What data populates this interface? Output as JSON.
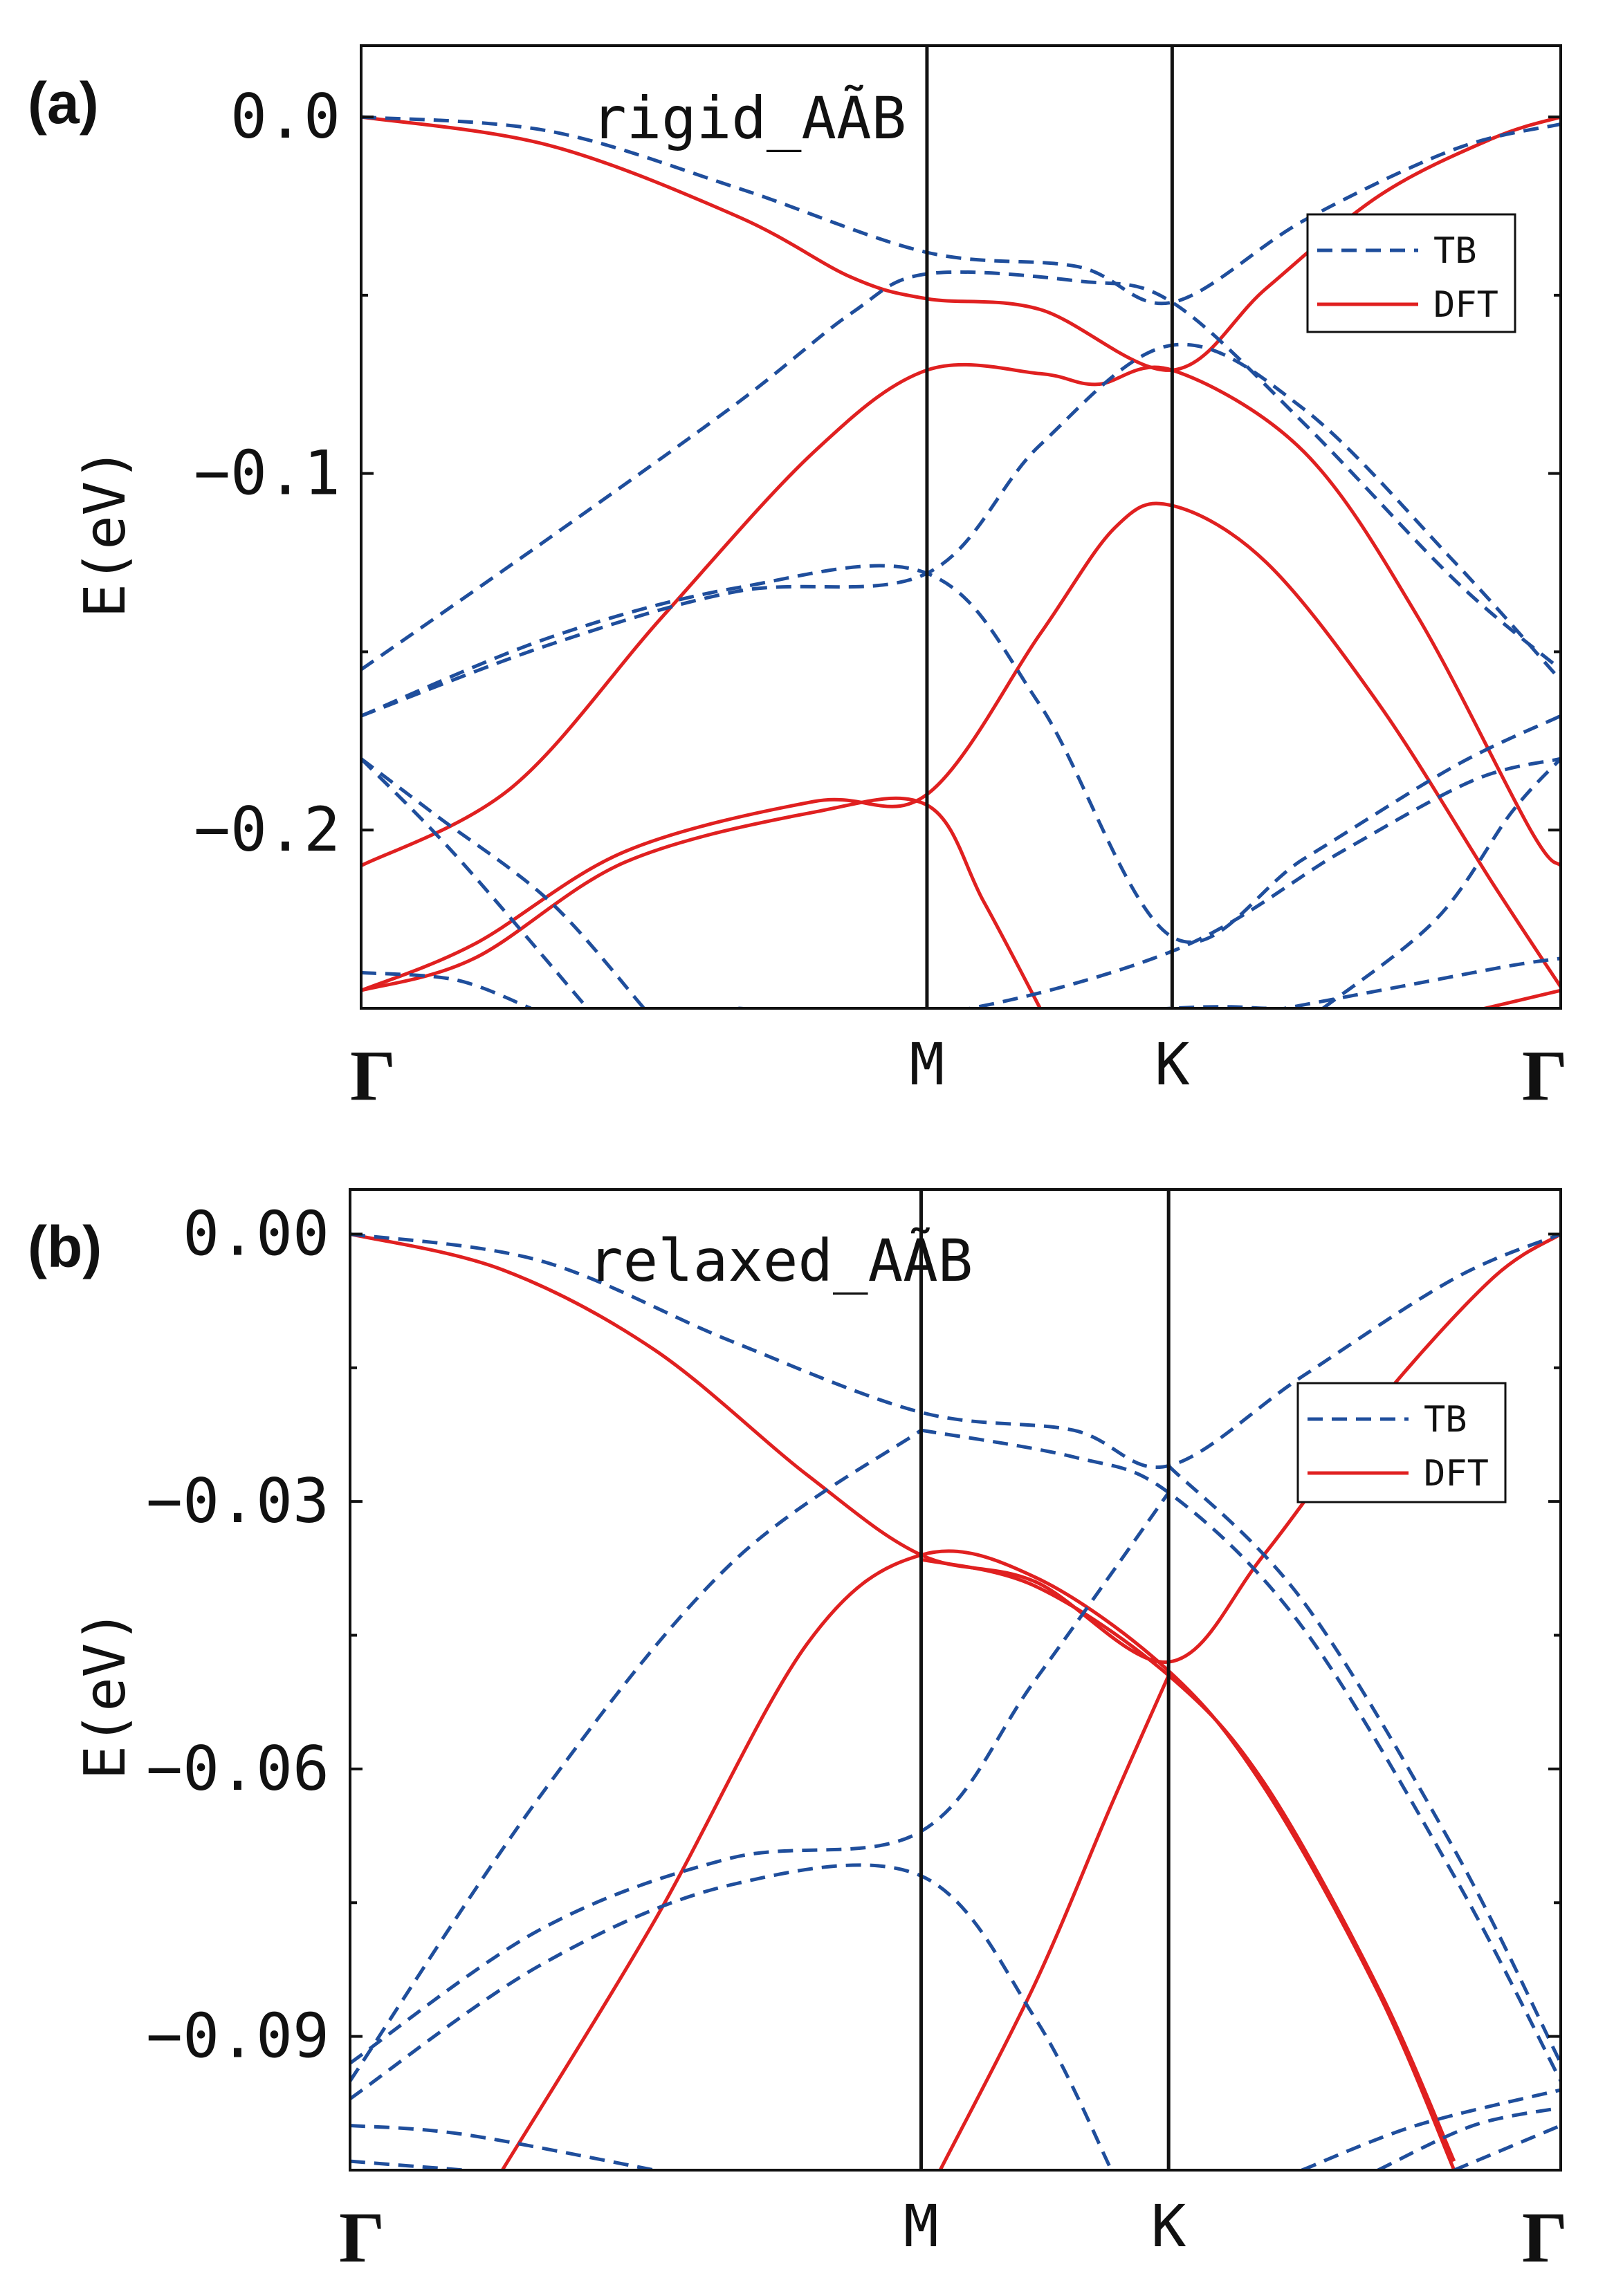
{
  "chart_data": [
    {
      "type": "line",
      "panel_label": "(a)",
      "title": "rigid_AÃB",
      "ylabel": "E(eV)",
      "ylim": [
        -0.25,
        0.02
      ],
      "yticks": [
        0.0,
        -0.1,
        -0.2
      ],
      "ytick_labels": [
        "0.0",
        "−0.1",
        "−0.2"
      ],
      "minor_yticks": [
        -0.05,
        -0.15
      ],
      "kpath": [
        0,
        1.5,
        2.15,
        3.18
      ],
      "kpoint_labels": [
        "Γ",
        "M",
        "K",
        "Γ"
      ],
      "legend": {
        "position": "upper-right",
        "entries": [
          "TB",
          "DFT"
        ]
      },
      "series": [
        {
          "name": "DFT",
          "style": "solid-red",
          "bands": [
            [
              [
                0,
                0
              ],
              [
                0.5,
                -0.008
              ],
              [
                1.0,
                -0.028
              ],
              [
                1.3,
                -0.045
              ],
              [
                1.5,
                -0.051
              ],
              [
                1.8,
                -0.054
              ],
              [
                2.15,
                -0.071
              ],
              [
                2.4,
                -0.048
              ],
              [
                2.7,
                -0.022
              ],
              [
                3.0,
                -0.006
              ],
              [
                3.18,
                0
              ]
            ],
            [
              [
                0,
                -0.21
              ],
              [
                0.4,
                -0.188
              ],
              [
                0.8,
                -0.14
              ],
              [
                1.2,
                -0.094
              ],
              [
                1.5,
                -0.071
              ],
              [
                1.8,
                -0.072
              ],
              [
                1.95,
                -0.075
              ],
              [
                2.15,
                -0.071
              ],
              [
                2.5,
                -0.094
              ],
              [
                2.8,
                -0.14
              ],
              [
                3.1,
                -0.2
              ],
              [
                3.18,
                -0.21
              ]
            ],
            [
              [
                0,
                -0.245
              ],
              [
                0.3,
                -0.232
              ],
              [
                0.7,
                -0.206
              ],
              [
                1.2,
                -0.192
              ],
              [
                1.5,
                -0.19
              ],
              [
                1.8,
                -0.145
              ],
              [
                2.0,
                -0.115
              ],
              [
                2.15,
                -0.109
              ],
              [
                2.4,
                -0.125
              ],
              [
                2.7,
                -0.165
              ],
              [
                3.0,
                -0.215
              ],
              [
                3.18,
                -0.244
              ]
            ],
            [
              [
                0,
                -0.245
              ],
              [
                0.3,
                -0.236
              ],
              [
                0.7,
                -0.209
              ],
              [
                1.2,
                -0.195
              ],
              [
                1.5,
                -0.193
              ],
              [
                1.65,
                -0.22
              ],
              [
                1.8,
                -0.25
              ]
            ],
            [
              [
                2.9,
                -0.252
              ],
              [
                3.18,
                -0.245
              ]
            ]
          ]
        },
        {
          "name": "TB",
          "style": "dashed-blue",
          "bands": [
            [
              [
                0,
                0
              ],
              [
                0.5,
                -0.004
              ],
              [
                1.0,
                -0.02
              ],
              [
                1.5,
                -0.038
              ],
              [
                1.9,
                -0.042
              ],
              [
                2.15,
                -0.052
              ],
              [
                2.5,
                -0.029
              ],
              [
                2.9,
                -0.009
              ],
              [
                3.18,
                -0.002
              ]
            ],
            [
              [
                0,
                -0.155
              ],
              [
                0.5,
                -0.118
              ],
              [
                1.0,
                -0.08
              ],
              [
                1.3,
                -0.055
              ],
              [
                1.5,
                -0.044
              ],
              [
                1.9,
                -0.046
              ],
              [
                2.15,
                -0.052
              ],
              [
                2.5,
                -0.086
              ],
              [
                2.9,
                -0.13
              ],
              [
                3.18,
                -0.155
              ]
            ],
            [
              [
                0,
                -0.168
              ],
              [
                0.5,
                -0.148
              ],
              [
                1.0,
                -0.133
              ],
              [
                1.5,
                -0.128
              ],
              [
                1.8,
                -0.092
              ],
              [
                2.15,
                -0.064
              ],
              [
                2.5,
                -0.082
              ],
              [
                2.9,
                -0.125
              ],
              [
                3.18,
                -0.158
              ]
            ],
            [
              [
                0,
                -0.168
              ],
              [
                0.5,
                -0.146
              ],
              [
                1.0,
                -0.132
              ],
              [
                1.5,
                -0.128
              ],
              [
                1.8,
                -0.165
              ],
              [
                2.15,
                -0.23
              ],
              [
                2.5,
                -0.208
              ],
              [
                2.9,
                -0.182
              ],
              [
                3.18,
                -0.168
              ]
            ],
            [
              [
                0,
                -0.18
              ],
              [
                0.2,
                -0.196
              ],
              [
                0.5,
                -0.22
              ],
              [
                0.75,
                -0.25
              ]
            ],
            [
              [
                0,
                -0.18
              ],
              [
                0.25,
                -0.207
              ],
              [
                0.6,
                -0.25
              ]
            ],
            [
              [
                0,
                -0.24
              ],
              [
                0.25,
                -0.242
              ],
              [
                0.45,
                -0.25
              ]
            ],
            [
              [
                1.0,
                -0.25
              ],
              [
                1.5,
                -0.252
              ],
              [
                2.15,
                -0.234
              ],
              [
                2.6,
                -0.206
              ],
              [
                2.95,
                -0.186
              ],
              [
                3.18,
                -0.18
              ]
            ],
            [
              [
                1.4,
                -0.256
              ],
              [
                2.15,
                -0.25
              ],
              [
                2.4,
                -0.25
              ]
            ],
            [
              [
                2.35,
                -0.252
              ],
              [
                2.75,
                -0.244
              ],
              [
                3.05,
                -0.238
              ],
              [
                3.18,
                -0.236
              ]
            ],
            [
              [
                2.55,
                -0.25
              ],
              [
                2.85,
                -0.225
              ],
              [
                3.05,
                -0.195
              ],
              [
                3.18,
                -0.18
              ]
            ]
          ]
        }
      ]
    },
    {
      "type": "line",
      "panel_label": "(b)",
      "title": "relaxed_AÃB",
      "ylabel": "E(eV)",
      "ylim": [
        -0.105,
        0.005
      ],
      "yticks": [
        0.0,
        -0.03,
        -0.06,
        -0.09
      ],
      "ytick_labels": [
        "0.00",
        "−0.03",
        "−0.06",
        "−0.09"
      ],
      "minor_yticks": [
        -0.015,
        -0.045,
        -0.075
      ],
      "kpath": [
        0,
        1.5,
        2.15,
        3.18
      ],
      "kpoint_labels": [
        "Γ",
        "M",
        "K",
        "Γ"
      ],
      "legend": {
        "position": "upper-right",
        "entries": [
          "TB",
          "DFT"
        ]
      },
      "series": [
        {
          "name": "DFT",
          "style": "solid-red",
          "bands": [
            [
              [
                0,
                0
              ],
              [
                0.4,
                -0.004
              ],
              [
                0.8,
                -0.013
              ],
              [
                1.2,
                -0.027
              ],
              [
                1.5,
                -0.036
              ],
              [
                1.8,
                -0.039
              ],
              [
                2.15,
                -0.048
              ],
              [
                2.4,
                -0.036
              ],
              [
                2.7,
                -0.019
              ],
              [
                3.0,
                -0.005
              ],
              [
                3.18,
                0
              ]
            ],
            [
              [
                0.4,
                -0.105
              ],
              [
                0.8,
                -0.077
              ],
              [
                1.2,
                -0.046
              ],
              [
                1.5,
                -0.036
              ],
              [
                1.8,
                -0.0385
              ],
              [
                2.15,
                -0.049
              ],
              [
                2.4,
                -0.062
              ],
              [
                2.7,
                -0.085
              ],
              [
                2.9,
                -0.105
              ]
            ],
            [
              [
                1.5,
                -0.0365
              ],
              [
                1.8,
                -0.0395
              ],
              [
                2.15,
                -0.0495
              ],
              [
                2.4,
                -0.0615
              ],
              [
                2.7,
                -0.0845
              ],
              [
                2.9,
                -0.104
              ]
            ],
            [
              [
                1.55,
                -0.105
              ],
              [
                1.8,
                -0.084
              ],
              [
                2.0,
                -0.064
              ],
              [
                2.15,
                -0.0495
              ]
            ]
          ]
        },
        {
          "name": "TB",
          "style": "dashed-blue",
          "bands": [
            [
              [
                0,
                0
              ],
              [
                0.5,
                -0.003
              ],
              [
                1.0,
                -0.012
              ],
              [
                1.5,
                -0.02
              ],
              [
                1.9,
                -0.022
              ],
              [
                2.15,
                -0.026
              ],
              [
                2.5,
                -0.016
              ],
              [
                2.9,
                -0.005
              ],
              [
                3.18,
                0
              ]
            ],
            [
              [
                1.5,
                -0.022
              ],
              [
                1.9,
                -0.025
              ],
              [
                2.15,
                -0.029
              ],
              [
                2.5,
                -0.044
              ],
              [
                2.9,
                -0.072
              ],
              [
                3.18,
                -0.095
              ]
            ],
            [
              [
                0,
                -0.095
              ],
              [
                0.5,
                -0.063
              ],
              [
                1.0,
                -0.037
              ],
              [
                1.5,
                -0.022
              ]
            ],
            [
              [
                2.15,
                -0.026
              ],
              [
                2.5,
                -0.041
              ],
              [
                2.9,
                -0.069
              ],
              [
                3.18,
                -0.093
              ]
            ],
            [
              [
                0,
                -0.093
              ],
              [
                0.5,
                -0.078
              ],
              [
                1.0,
                -0.07
              ],
              [
                1.5,
                -0.067
              ],
              [
                1.8,
                -0.05
              ],
              [
                2.15,
                -0.029
              ]
            ],
            [
              [
                0,
                -0.097
              ],
              [
                0.5,
                -0.082
              ],
              [
                1.0,
                -0.073
              ],
              [
                1.5,
                -0.072
              ],
              [
                1.8,
                -0.088
              ],
              [
                2.0,
                -0.105
              ]
            ],
            [
              [
                0,
                -0.1
              ],
              [
                0.3,
                -0.101
              ],
              [
                0.8,
                -0.105
              ]
            ],
            [
              [
                0,
                -0.104
              ],
              [
                0.3,
                -0.105
              ]
            ],
            [
              [
                2.5,
                -0.105
              ],
              [
                2.8,
                -0.1
              ],
              [
                3.18,
                -0.096
              ]
            ],
            [
              [
                2.7,
                -0.105
              ],
              [
                2.95,
                -0.1
              ],
              [
                3.18,
                -0.098
              ]
            ],
            [
              [
                2.9,
                -0.105
              ],
              [
                3.18,
                -0.1
              ]
            ]
          ]
        }
      ]
    }
  ]
}
